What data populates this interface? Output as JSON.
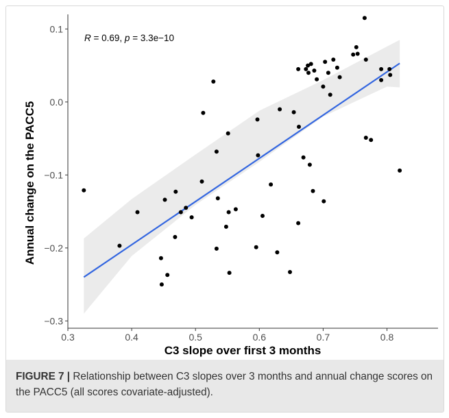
{
  "chart_data": {
    "type": "scatter",
    "title": "",
    "xlabel": "C3 slope over first 3 months",
    "ylabel": "Annual change on the PACC5",
    "xlim": [
      0.3,
      0.88
    ],
    "ylim": [
      -0.31,
      0.12
    ],
    "x_ticks": [
      "0.3",
      "0.4",
      "0.5",
      "0.6",
      "0.7",
      "0.8"
    ],
    "y_ticks": [
      "0.1",
      "0.0",
      "−0.1",
      "−0.2",
      "−0.3"
    ],
    "x_tick_values": [
      0.3,
      0.4,
      0.5,
      0.6,
      0.7,
      0.8
    ],
    "y_tick_values": [
      0.1,
      0.0,
      -0.1,
      -0.2,
      -0.3
    ],
    "annotation": {
      "r_symbol": "R",
      "r_rest": " = 0.69, ",
      "p_symbol": "p",
      "p_rest": " = 3.3e−10"
    },
    "grid": false,
    "legend": "none",
    "colors": {
      "points": "#000000",
      "fit_line": "#3366e0",
      "ci_band": "#ebebeb"
    },
    "fit": {
      "x": [
        0.325,
        0.82
      ],
      "y": [
        -0.24,
        0.053
      ]
    },
    "ci_band": {
      "x": [
        0.325,
        0.4,
        0.5,
        0.6,
        0.7,
        0.8,
        0.82
      ],
      "upper": [
        -0.187,
        -0.133,
        -0.072,
        -0.012,
        0.03,
        0.076,
        0.085
      ],
      "lower": [
        -0.29,
        -0.211,
        -0.141,
        -0.082,
        -0.02,
        0.021,
        0.02
      ]
    },
    "points": [
      {
        "x": 0.325,
        "y": -0.121
      },
      {
        "x": 0.381,
        "y": -0.197
      },
      {
        "x": 0.409,
        "y": -0.151
      },
      {
        "x": 0.446,
        "y": -0.214
      },
      {
        "x": 0.447,
        "y": -0.25
      },
      {
        "x": 0.452,
        "y": -0.134
      },
      {
        "x": 0.456,
        "y": -0.237
      },
      {
        "x": 0.468,
        "y": -0.185
      },
      {
        "x": 0.469,
        "y": -0.123
      },
      {
        "x": 0.477,
        "y": -0.151
      },
      {
        "x": 0.485,
        "y": -0.145
      },
      {
        "x": 0.494,
        "y": -0.158
      },
      {
        "x": 0.51,
        "y": -0.109
      },
      {
        "x": 0.512,
        "y": -0.015
      },
      {
        "x": 0.528,
        "y": 0.028
      },
      {
        "x": 0.533,
        "y": -0.068
      },
      {
        "x": 0.533,
        "y": -0.201
      },
      {
        "x": 0.535,
        "y": -0.132
      },
      {
        "x": 0.548,
        "y": -0.171
      },
      {
        "x": 0.551,
        "y": -0.043
      },
      {
        "x": 0.552,
        "y": -0.151
      },
      {
        "x": 0.553,
        "y": -0.234
      },
      {
        "x": 0.563,
        "y": -0.147
      },
      {
        "x": 0.595,
        "y": -0.199
      },
      {
        "x": 0.597,
        "y": -0.024
      },
      {
        "x": 0.598,
        "y": -0.073
      },
      {
        "x": 0.605,
        "y": -0.156
      },
      {
        "x": 0.618,
        "y": -0.113
      },
      {
        "x": 0.628,
        "y": -0.206
      },
      {
        "x": 0.632,
        "y": -0.01
      },
      {
        "x": 0.648,
        "y": -0.233
      },
      {
        "x": 0.654,
        "y": -0.014
      },
      {
        "x": 0.661,
        "y": 0.045
      },
      {
        "x": 0.662,
        "y": -0.034
      },
      {
        "x": 0.661,
        "y": -0.166
      },
      {
        "x": 0.669,
        "y": -0.076
      },
      {
        "x": 0.673,
        "y": 0.045
      },
      {
        "x": 0.676,
        "y": 0.05
      },
      {
        "x": 0.677,
        "y": 0.04
      },
      {
        "x": 0.679,
        "y": -0.086
      },
      {
        "x": 0.681,
        "y": 0.052
      },
      {
        "x": 0.684,
        "y": -0.122
      },
      {
        "x": 0.686,
        "y": 0.043
      },
      {
        "x": 0.69,
        "y": 0.031
      },
      {
        "x": 0.7,
        "y": 0.021
      },
      {
        "x": 0.701,
        "y": -0.136
      },
      {
        "x": 0.703,
        "y": 0.055
      },
      {
        "x": 0.708,
        "y": 0.04
      },
      {
        "x": 0.711,
        "y": 0.01
      },
      {
        "x": 0.716,
        "y": 0.058
      },
      {
        "x": 0.722,
        "y": 0.047
      },
      {
        "x": 0.726,
        "y": 0.034
      },
      {
        "x": 0.747,
        "y": 0.065
      },
      {
        "x": 0.752,
        "y": 0.075
      },
      {
        "x": 0.754,
        "y": 0.066
      },
      {
        "x": 0.765,
        "y": 0.115
      },
      {
        "x": 0.767,
        "y": 0.058
      },
      {
        "x": 0.767,
        "y": -0.049
      },
      {
        "x": 0.775,
        "y": -0.052
      },
      {
        "x": 0.791,
        "y": 0.045
      },
      {
        "x": 0.791,
        "y": 0.03
      },
      {
        "x": 0.804,
        "y": 0.045
      },
      {
        "x": 0.805,
        "y": 0.037
      },
      {
        "x": 0.82,
        "y": -0.094
      }
    ]
  },
  "caption": {
    "label": "FIGURE 7 |",
    "text": " Relationship between C3 slopes over 3 months and annual change scores on the PACC5 (all scores covariate-adjusted)."
  }
}
